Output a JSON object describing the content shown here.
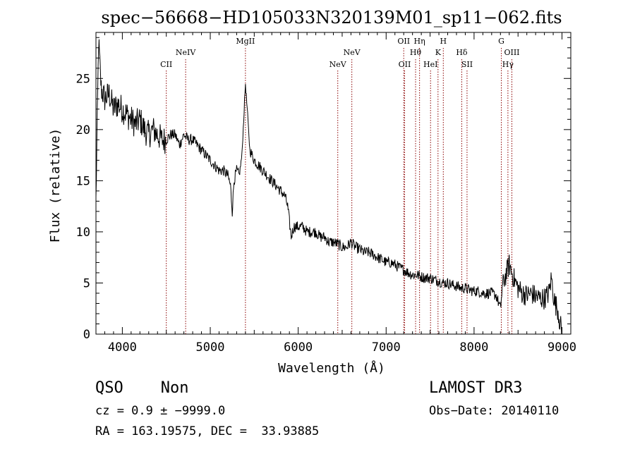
{
  "chart_data": {
    "type": "line",
    "title": "spec−56668−HD105033N320139M01_sp11−062.fits",
    "xlabel": "Wavelength (Å)",
    "ylabel": "Flux (relative)",
    "xlim": [
      3700,
      9100
    ],
    "ylim": [
      0,
      29.5
    ],
    "xticks": [
      4000,
      5000,
      6000,
      7000,
      8000,
      9000
    ],
    "yticks": [
      0,
      5,
      10,
      15,
      20,
      25
    ],
    "grid": false,
    "series": [
      {
        "x": [
          3700,
          3730,
          3760,
          3800,
          3850,
          3900,
          3950,
          4000,
          4050,
          4100,
          4150,
          4200,
          4250,
          4300,
          4350,
          4400,
          4450,
          4500,
          4550,
          4600,
          4650,
          4700,
          4750,
          4800,
          4850,
          4900,
          4950,
          5000,
          5050,
          5100,
          5150,
          5200,
          5230,
          5250,
          5270,
          5300,
          5330,
          5360,
          5380,
          5400,
          5420,
          5450,
          5500,
          5550,
          5600,
          5650,
          5700,
          5750,
          5800,
          5850,
          5880,
          5900,
          5920,
          5950,
          6000,
          6050,
          6100,
          6150,
          6200,
          6250,
          6300,
          6350,
          6400,
          6450,
          6500,
          6550,
          6600,
          6650,
          6700,
          6750,
          6800,
          6850,
          6900,
          6950,
          7000,
          7050,
          7100,
          7150,
          7200,
          7250,
          7300,
          7350,
          7400,
          7450,
          7500,
          7550,
          7600,
          7650,
          7700,
          7750,
          7800,
          7850,
          7900,
          7950,
          8000,
          8050,
          8100,
          8150,
          8200,
          8250,
          8300,
          8320,
          8350,
          8400,
          8450,
          8500,
          8550,
          8600,
          8650,
          8700,
          8750,
          8800,
          8850,
          8880,
          8900,
          8920,
          8950,
          8980,
          9000
        ],
        "y": [
          13,
          28.5,
          24,
          23,
          23.5,
          22,
          22.5,
          22,
          21.5,
          21,
          20.5,
          21,
          20,
          19.5,
          20,
          19.5,
          19,
          19,
          19.5,
          19.5,
          18.5,
          19.5,
          19,
          19,
          18.5,
          18,
          17.5,
          17,
          16.5,
          16,
          16,
          15.5,
          14.5,
          12,
          15,
          16,
          15.5,
          17.5,
          21,
          24.5,
          22,
          18,
          17,
          16.5,
          16,
          15.5,
          15,
          14.5,
          14,
          13.5,
          12.5,
          11,
          9.5,
          10.5,
          10.5,
          10.5,
          10,
          10,
          10,
          9.5,
          9.5,
          9,
          9,
          8.8,
          8.5,
          8.5,
          9,
          8.5,
          8.3,
          8,
          8,
          7.8,
          7.5,
          7.3,
          7,
          7,
          6.8,
          6.5,
          6.3,
          6,
          5.8,
          5.8,
          5.6,
          5.5,
          5.5,
          5.3,
          5.2,
          5,
          5,
          4.8,
          4.7,
          4.5,
          4.5,
          4.3,
          4.2,
          4.2,
          4,
          4,
          4,
          3.8,
          2.5,
          4.5,
          5.5,
          6.8,
          5.5,
          4.5,
          4,
          3.8,
          4,
          3.7,
          3.5,
          3.5,
          4,
          5.5,
          4,
          3,
          2.5,
          1,
          0
        ]
      }
    ],
    "line_color": "#000000",
    "marker_color": "#8b0000",
    "lines": [
      {
        "label": "CII",
        "x": 4500,
        "row": 3
      },
      {
        "label": "NeIV",
        "x": 4720,
        "row": 2
      },
      {
        "label": "MgII",
        "x": 5400,
        "row": 1
      },
      {
        "label": "NeV",
        "x": 6450,
        "row": 3
      },
      {
        "label": "NeV",
        "x": 6610,
        "row": 2
      },
      {
        "label": "OII",
        "x": 7200,
        "row": 1
      },
      {
        "label": "OII",
        "x": 7210,
        "row": 3
      },
      {
        "label": "Hθ",
        "x": 7335,
        "row": 2
      },
      {
        "label": "Hη",
        "x": 7380,
        "row": 1
      },
      {
        "label": "HeI",
        "x": 7505,
        "row": 3
      },
      {
        "label": "K",
        "x": 7590,
        "row": 2
      },
      {
        "label": "H",
        "x": 7650,
        "row": 1
      },
      {
        "label": "Hδ",
        "x": 7860,
        "row": 2
      },
      {
        "label": "SII",
        "x": 7920,
        "row": 3
      },
      {
        "label": "G",
        "x": 8310,
        "row": 1
      },
      {
        "label": "Hγ",
        "x": 8385,
        "row": 3
      },
      {
        "label": "OIII",
        "x": 8430,
        "row": 2
      }
    ]
  },
  "info": {
    "class": "QSO    Non",
    "survey": "LAMOST DR3",
    "cz": "cz = 0.9 ± −9999.0",
    "obs_date": "Obs−Date: 20140110",
    "radec": "RA = 163.19575, DEC =  33.93885"
  }
}
